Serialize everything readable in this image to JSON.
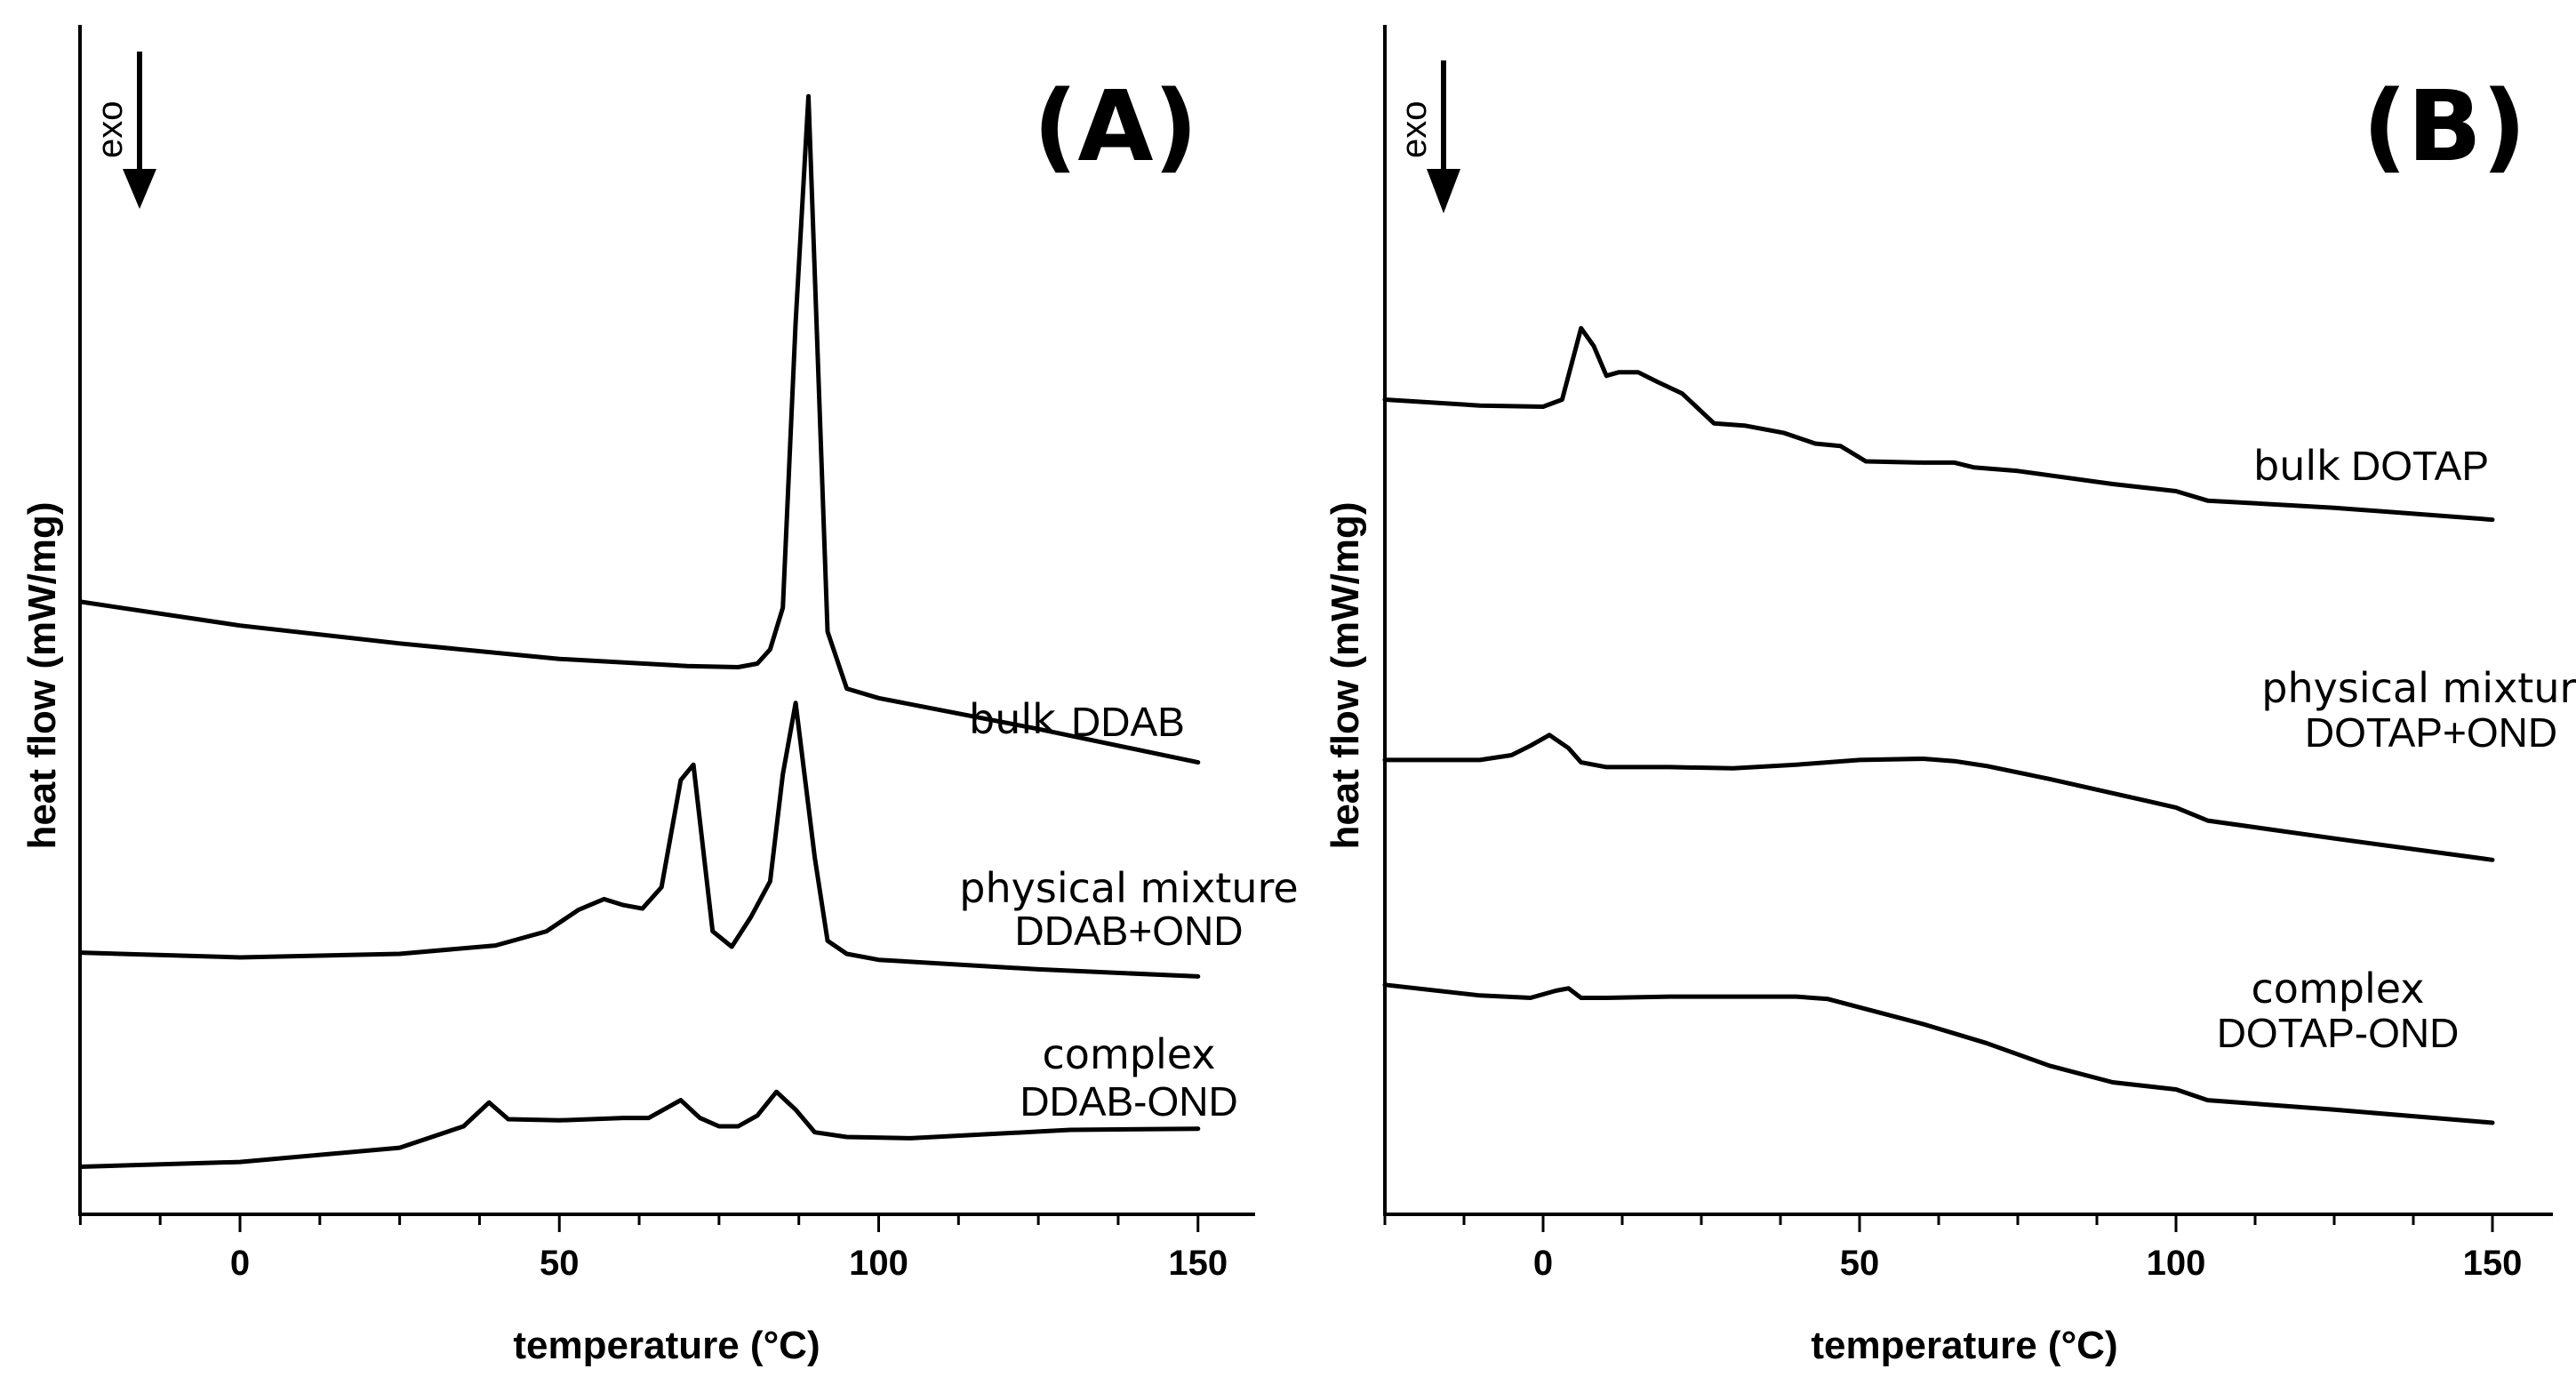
{
  "chart_data": [
    {
      "id": "A",
      "type": "line",
      "panel_label": "(A)",
      "xlabel": "temperature (°C)",
      "ylabel": "heat flow (mW/mg)",
      "exo_label": "exo",
      "xlim": [
        -25,
        160
      ],
      "ylim": [
        0,
        100
      ],
      "xticks": [
        0,
        50,
        100,
        150
      ],
      "xtick_labels": [
        "0",
        "50",
        "100",
        "150"
      ],
      "series": [
        {
          "name": "bulk DDAB",
          "label_parts": [
            "bulk",
            "DDAB"
          ],
          "x": [
            -25,
            0,
            25,
            50,
            70,
            78,
            81,
            83,
            85,
            87,
            89,
            92,
            95,
            100,
            125,
            150
          ],
          "y": [
            51.5,
            49.5,
            48.0,
            46.7,
            46.1,
            46.0,
            46.3,
            47.5,
            51.0,
            75.0,
            94.0,
            49.0,
            44.2,
            43.4,
            40.8,
            38.0
          ]
        },
        {
          "name": "physical mixture DDAB+OND",
          "label_parts": [
            "physical mixture",
            "DDAB+OND"
          ],
          "x": [
            -25,
            0,
            25,
            40,
            48,
            53,
            57,
            60,
            63,
            66,
            69,
            71,
            74,
            77,
            80,
            83,
            85,
            87,
            90,
            92,
            95,
            100,
            125,
            150
          ],
          "y": [
            22.0,
            21.6,
            21.9,
            22.6,
            23.8,
            25.6,
            26.5,
            26.0,
            25.7,
            27.5,
            36.5,
            37.8,
            23.8,
            22.5,
            25.0,
            28.0,
            37.0,
            43.0,
            30.0,
            23.0,
            21.9,
            21.4,
            20.6,
            20.0
          ]
        },
        {
          "name": "complex DDAB-OND",
          "label_parts": [
            "complex",
            "DDAB-OND"
          ],
          "x": [
            -25,
            0,
            25,
            35,
            39,
            42,
            50,
            60,
            64,
            69,
            72,
            75,
            78,
            81,
            84,
            87,
            90,
            95,
            105,
            130,
            150
          ],
          "y": [
            4.0,
            4.4,
            5.6,
            7.4,
            9.4,
            8.0,
            7.9,
            8.1,
            8.1,
            9.6,
            8.1,
            7.4,
            7.4,
            8.3,
            10.3,
            8.8,
            6.9,
            6.5,
            6.4,
            7.1,
            7.2
          ]
        }
      ]
    },
    {
      "id": "B",
      "type": "line",
      "panel_label": "(B)",
      "xlabel": "temperature (°C)",
      "ylabel": "heat flow (mW/mg)",
      "exo_label": "exo",
      "xlim": [
        -25,
        160
      ],
      "ylim": [
        0,
        100
      ],
      "xticks": [
        0,
        50,
        100,
        150
      ],
      "xtick_labels": [
        "0",
        "50",
        "100",
        "150"
      ],
      "series": [
        {
          "name": "bulk DOTAP",
          "label_parts": [
            "bulk",
            "DOTAP"
          ],
          "x": [
            -25,
            -10,
            0,
            3,
            6,
            8,
            10,
            12,
            15,
            18,
            22,
            27,
            32,
            38,
            43,
            47,
            51,
            60,
            65,
            68,
            75,
            90,
            100,
            105,
            125,
            150
          ],
          "y": [
            68.5,
            68.0,
            67.9,
            68.5,
            74.5,
            73.0,
            70.5,
            70.8,
            70.8,
            70.0,
            69.0,
            66.5,
            66.3,
            65.7,
            64.8,
            64.6,
            63.3,
            63.2,
            63.2,
            62.8,
            62.5,
            61.4,
            60.8,
            60.0,
            59.4,
            58.4
          ]
        },
        {
          "name": "physical mixture DOTAP+OND",
          "label_parts": [
            "physical mixture",
            "DOTAP+OND"
          ],
          "x": [
            -25,
            -10,
            -5,
            -2,
            1,
            4,
            6,
            10,
            20,
            30,
            40,
            50,
            60,
            65,
            70,
            80,
            90,
            100,
            105,
            125,
            150
          ],
          "y": [
            38.2,
            38.2,
            38.6,
            39.4,
            40.3,
            39.2,
            38.0,
            37.6,
            37.6,
            37.5,
            37.8,
            38.2,
            38.3,
            38.1,
            37.7,
            36.6,
            35.4,
            34.2,
            33.1,
            31.6,
            29.8
          ]
        },
        {
          "name": "complex DOTAP-OND",
          "label_parts": [
            "complex",
            "DOTAP-OND"
          ],
          "x": [
            -25,
            -10,
            -2,
            2,
            4,
            6,
            10,
            20,
            30,
            40,
            45,
            50,
            60,
            70,
            80,
            90,
            100,
            105,
            125,
            150
          ],
          "y": [
            19.3,
            18.4,
            18.2,
            18.8,
            19.0,
            18.2,
            18.2,
            18.3,
            18.3,
            18.3,
            18.1,
            17.4,
            16.0,
            14.4,
            12.5,
            11.1,
            10.5,
            9.6,
            8.8,
            7.7
          ]
        }
      ]
    }
  ]
}
